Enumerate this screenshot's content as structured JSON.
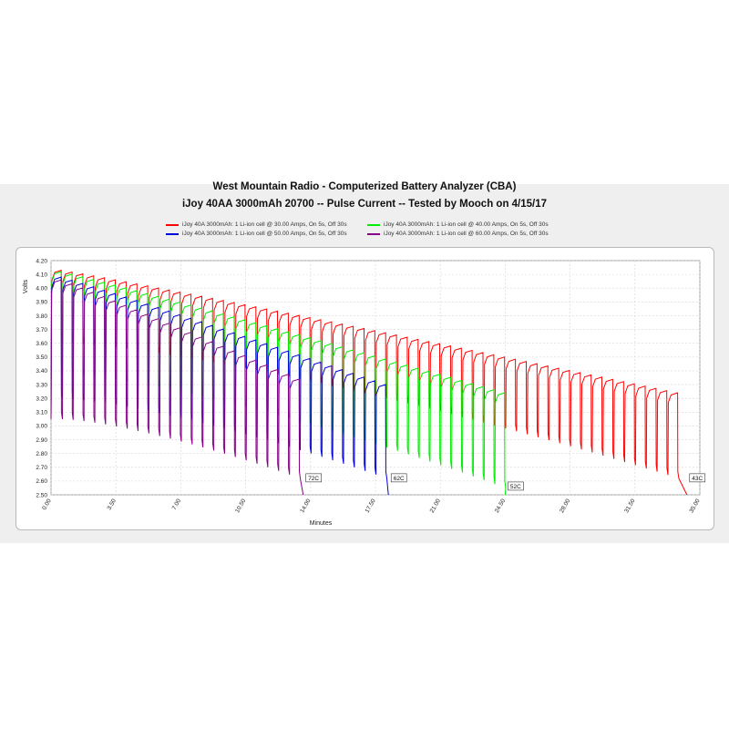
{
  "chart_data": {
    "type": "line",
    "title": "West Mountain Radio - Computerized Battery Analyzer (CBA)",
    "subtitle": "iJoy 40AA 3000mAh 20700 -- Pulse Current -- Tested by Mooch on 4/15/17",
    "xlabel": "Minutes",
    "ylabel": "Volts",
    "xlim": [
      0,
      35
    ],
    "ylim": [
      2.5,
      4.2
    ],
    "x_ticks": [
      "0.00",
      "3.50",
      "7.00",
      "10.50",
      "14.00",
      "17.50",
      "21.00",
      "24.50",
      "28.00",
      "31.50",
      "35.00"
    ],
    "y_ticks": [
      "2.50",
      "2.60",
      "2.70",
      "2.80",
      "2.90",
      "3.00",
      "3.10",
      "3.20",
      "3.30",
      "3.40",
      "3.50",
      "3.60",
      "3.70",
      "3.80",
      "3.90",
      "4.00",
      "4.10",
      "4.20"
    ],
    "grid": true,
    "legend_position": "top",
    "series": [
      {
        "name": "iJoy 40A 3000mAh: 1 Li-ion cell @ 30.00 Amps, On 5s, Off 30s",
        "color": "#ff0000",
        "end_minutes": 34.3,
        "rest_voltage_start": 4.13,
        "rest_voltage_end": 3.24,
        "load_voltage_start": 3.6,
        "load_voltage_end": 2.62,
        "end_label": "43C"
      },
      {
        "name": "iJoy 40A 3000mAh: 1 Li-ion cell @ 40.00 Amps, On 5s, Off 30s",
        "color": "#00ee00",
        "end_minutes": 24.5,
        "rest_voltage_start": 4.12,
        "rest_voltage_end": 3.24,
        "load_voltage_start": 3.38,
        "load_voltage_end": 2.55,
        "end_label": "52C"
      },
      {
        "name": "iJoy 40A 3000mAh: 1 Li-ion cell @ 50.00 Amps, On 5s, Off 30s",
        "color": "#0000dd",
        "end_minutes": 18.2,
        "rest_voltage_start": 4.08,
        "rest_voltage_end": 3.3,
        "load_voltage_start": 3.2,
        "load_voltage_end": 2.62,
        "end_label": "62C"
      },
      {
        "name": "iJoy 40A 3000mAh: 1 Li-ion cell @ 60.00 Amps, On 5s, Off 30s",
        "color": "#880088",
        "end_minutes": 13.6,
        "rest_voltage_start": 4.06,
        "rest_voltage_end": 3.34,
        "load_voltage_start": 3.05,
        "load_voltage_end": 2.62,
        "end_label": "72C"
      }
    ]
  }
}
